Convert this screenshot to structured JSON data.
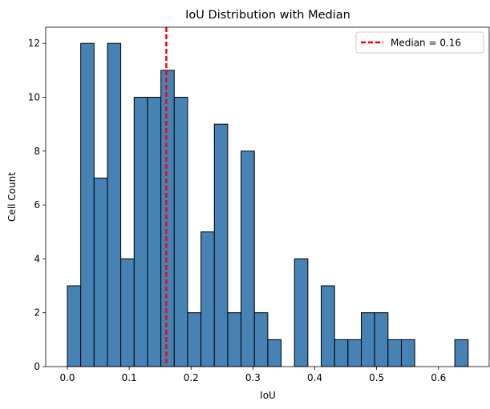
{
  "chart_data": {
    "type": "bar",
    "title": "IoU Distribution with Median",
    "xlabel": "IoU",
    "ylabel": "Cell Count",
    "xlim": [
      -0.035,
      0.682
    ],
    "ylim": [
      0,
      12.6
    ],
    "x_ticks": [
      0.0,
      0.1,
      0.2,
      0.3,
      0.4,
      0.5,
      0.6
    ],
    "x_tick_labels": [
      "0.0",
      "0.1",
      "0.2",
      "0.3",
      "0.4",
      "0.5",
      "0.6"
    ],
    "y_ticks": [
      0,
      2,
      4,
      6,
      8,
      10,
      12
    ],
    "y_tick_labels": [
      "0",
      "2",
      "4",
      "6",
      "8",
      "10",
      "12"
    ],
    "bin_start": 0.0,
    "bin_width": 0.0216,
    "counts": [
      3,
      12,
      7,
      12,
      4,
      10,
      10,
      11,
      10,
      2,
      5,
      9,
      2,
      8,
      2,
      1,
      0,
      4,
      0,
      3,
      1,
      1,
      2,
      2,
      1,
      1,
      0,
      0,
      0,
      1
    ],
    "bar_color": "#4682b4",
    "edge_color": "#000000",
    "median": 0.16,
    "median_color": "#ff0000",
    "legend": {
      "label": "Median = 0.16",
      "position": "upper right"
    },
    "grid": false
  }
}
